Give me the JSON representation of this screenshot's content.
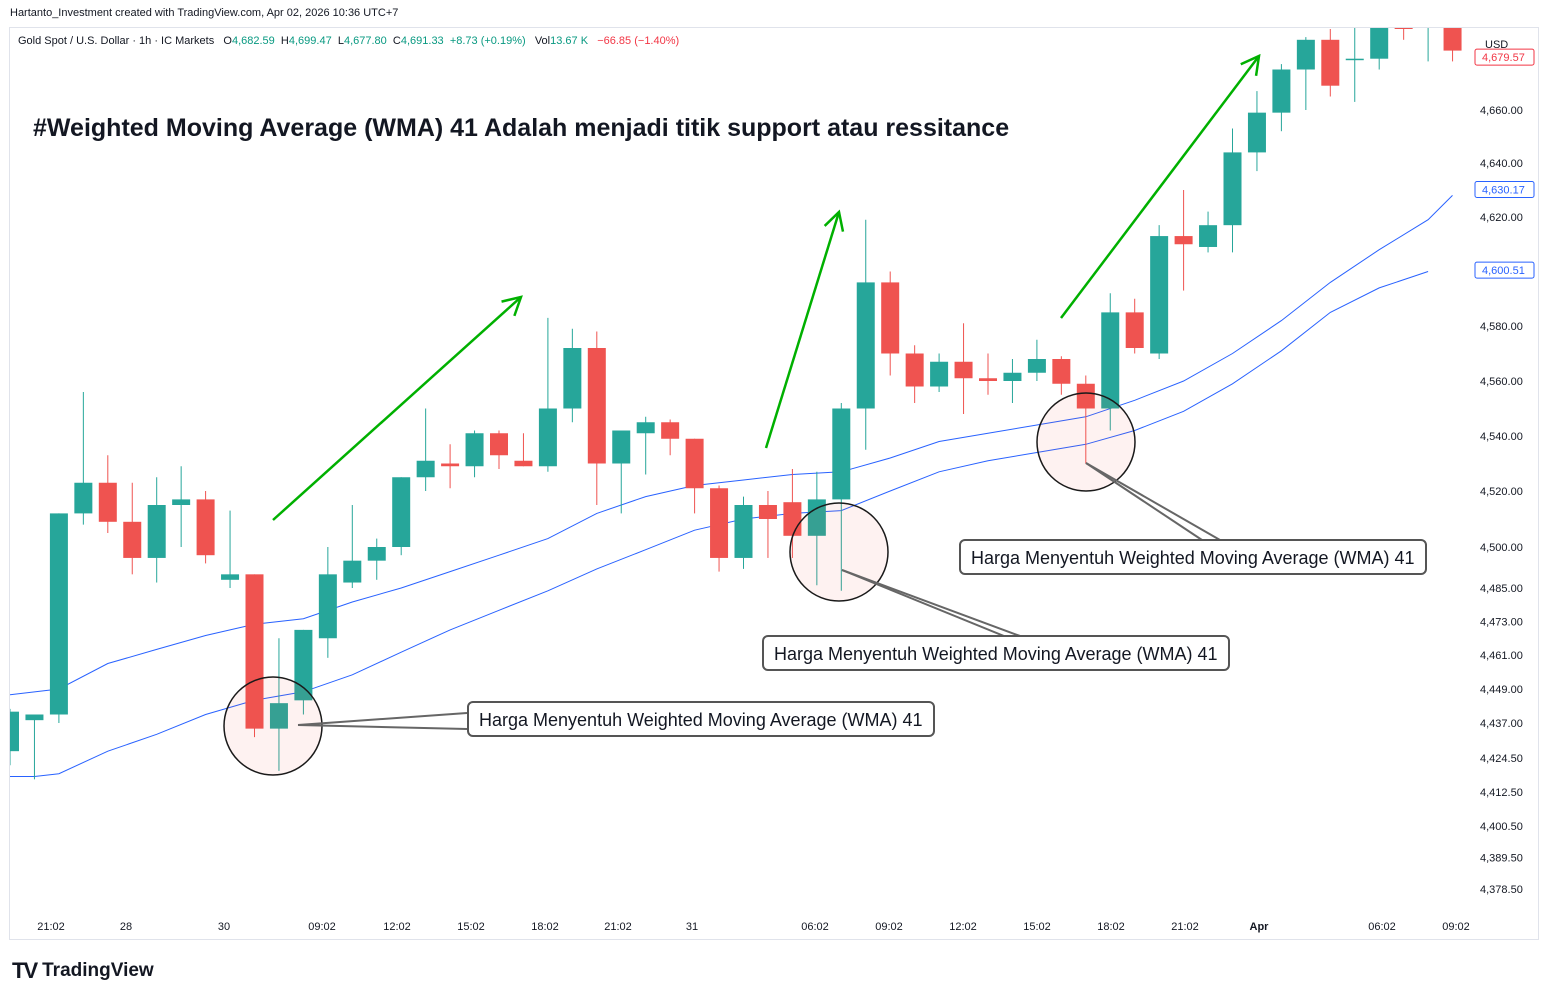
{
  "header": {
    "credit": "Hartanto_Investment created with TradingView.com, Apr 02, 2026 10:36 UTC+7",
    "symbol": "Gold Spot / U.S. Dollar · 1h · IC Markets",
    "o_label": "O",
    "o_value": "4,682.59",
    "h_label": "H",
    "h_value": "4,699.47",
    "l_label": "L",
    "l_value": "4,677.80",
    "c_label": "C",
    "c_value": "4,691.33",
    "change": "+8.73 (+0.19%)",
    "vol_label": "Vol",
    "vol_value": "13.67 K",
    "vol_change": "−66.85 (−1.40%)"
  },
  "currency": "USD",
  "headline": "#Weighted Moving Average (WMA) 41 Adalah menjadi titik support atau ressitance",
  "callouts": [
    "Harga Menyentuh Weighted Moving Average (WMA) 41",
    "Harga Menyentuh Weighted Moving Average (WMA) 41",
    "Harga Menyentuh Weighted Moving Average (WMA) 41"
  ],
  "branding": {
    "logo_mark": "TV",
    "logo_text": "TradingView"
  },
  "colors": {
    "up": "#26a69a",
    "down": "#ef5350",
    "wma": "#2962ff",
    "arrow": "#00b000",
    "price_tag": "#f23645"
  },
  "chart_data": {
    "type": "candlestick",
    "x_tick_labels": [
      "21:02",
      "28",
      "30",
      "09:02",
      "12:02",
      "15:02",
      "18:02",
      "21:02",
      "31",
      "06:02",
      "09:02",
      "12:02",
      "15:02",
      "18:02",
      "21:02",
      "Apr",
      "06:02",
      "09:02"
    ],
    "y_tick_labels": [
      "4,660.00",
      "4,640.00",
      "4,620.00",
      "4,580.00",
      "4,560.00",
      "4,540.00",
      "4,520.00",
      "4,500.00",
      "4,485.00",
      "4,473.00",
      "4,461.00",
      "4,449.00",
      "4,437.00",
      "4,424.50",
      "4,412.50",
      "4,400.50",
      "4,389.50",
      "4,378.50"
    ],
    "y_scale": "log",
    "y_range": [
      4372,
      4700
    ],
    "price_labels": [
      {
        "value": 4679.57,
        "text": "4,679.57",
        "color": "#f23645",
        "filled": false
      },
      {
        "value": 4630.17,
        "text": "4,630.17",
        "color": "#2962ff",
        "filled": false
      },
      {
        "value": 4600.51,
        "text": "4,600.51",
        "color": "#2962ff",
        "filled": false
      }
    ],
    "candles": [
      {
        "o": 4427,
        "h": 4442,
        "l": 4422,
        "c": 4441
      },
      {
        "o": 4438,
        "h": 4440,
        "l": 4417,
        "c": 4440
      },
      {
        "o": 4440,
        "h": 4512,
        "l": 4437,
        "c": 4512
      },
      {
        "o": 4512,
        "h": 4556,
        "l": 4508,
        "c": 4523
      },
      {
        "o": 4523,
        "h": 4533,
        "l": 4505,
        "c": 4509
      },
      {
        "o": 4509,
        "h": 4523,
        "l": 4490,
        "c": 4496
      },
      {
        "o": 4496,
        "h": 4525,
        "l": 4487,
        "c": 4515
      },
      {
        "o": 4515,
        "h": 4529,
        "l": 4500,
        "c": 4517
      },
      {
        "o": 4517,
        "h": 4520,
        "l": 4494,
        "c": 4497
      },
      {
        "o": 4488,
        "h": 4513,
        "l": 4485,
        "c": 4490
      },
      {
        "o": 4490,
        "h": 4490,
        "l": 4432,
        "c": 4435
      },
      {
        "o": 4435,
        "h": 4467,
        "l": 4420,
        "c": 4444
      },
      {
        "o": 4445,
        "h": 4470,
        "l": 4440,
        "c": 4470
      },
      {
        "o": 4467,
        "h": 4500,
        "l": 4460,
        "c": 4490
      },
      {
        "o": 4487,
        "h": 4515,
        "l": 4485,
        "c": 4495
      },
      {
        "o": 4495,
        "h": 4503,
        "l": 4488,
        "c": 4500
      },
      {
        "o": 4500,
        "h": 4525,
        "l": 4497,
        "c": 4525
      },
      {
        "o": 4525,
        "h": 4550,
        "l": 4520,
        "c": 4531
      },
      {
        "o": 4530,
        "h": 4537,
        "l": 4521,
        "c": 4529
      },
      {
        "o": 4529,
        "h": 4542,
        "l": 4525,
        "c": 4541
      },
      {
        "o": 4541,
        "h": 4542,
        "l": 4528,
        "c": 4533
      },
      {
        "o": 4531,
        "h": 4541,
        "l": 4529,
        "c": 4529
      },
      {
        "o": 4529,
        "h": 4583,
        "l": 4527,
        "c": 4550
      },
      {
        "o": 4550,
        "h": 4579,
        "l": 4545,
        "c": 4572
      },
      {
        "o": 4572,
        "h": 4578,
        "l": 4515,
        "c": 4530
      },
      {
        "o": 4530,
        "h": 4542,
        "l": 4512,
        "c": 4542
      },
      {
        "o": 4541,
        "h": 4547,
        "l": 4526,
        "c": 4545
      },
      {
        "o": 4545,
        "h": 4546,
        "l": 4533,
        "c": 4539
      },
      {
        "o": 4539,
        "h": 4539,
        "l": 4512,
        "c": 4521
      },
      {
        "o": 4521,
        "h": 4522,
        "l": 4491,
        "c": 4496
      },
      {
        "o": 4496,
        "h": 4518,
        "l": 4492,
        "c": 4515
      },
      {
        "o": 4515,
        "h": 4520,
        "l": 4496,
        "c": 4510
      },
      {
        "o": 4516,
        "h": 4528,
        "l": 4496,
        "c": 4504
      },
      {
        "o": 4504,
        "h": 4527,
        "l": 4486,
        "c": 4517
      },
      {
        "o": 4517,
        "h": 4552,
        "l": 4484,
        "c": 4550
      },
      {
        "o": 4550,
        "h": 4619,
        "l": 4535,
        "c": 4596
      },
      {
        "o": 4596,
        "h": 4600,
        "l": 4562,
        "c": 4570
      },
      {
        "o": 4570,
        "h": 4573,
        "l": 4552,
        "c": 4558
      },
      {
        "o": 4558,
        "h": 4570,
        "l": 4556,
        "c": 4567
      },
      {
        "o": 4567,
        "h": 4581,
        "l": 4548,
        "c": 4561
      },
      {
        "o": 4561,
        "h": 4570,
        "l": 4555,
        "c": 4560
      },
      {
        "o": 4560,
        "h": 4568,
        "l": 4552,
        "c": 4563
      },
      {
        "o": 4563,
        "h": 4575,
        "l": 4560,
        "c": 4568
      },
      {
        "o": 4568,
        "h": 4569,
        "l": 4555,
        "c": 4559
      },
      {
        "o": 4559,
        "h": 4562,
        "l": 4530,
        "c": 4550
      },
      {
        "o": 4550,
        "h": 4592,
        "l": 4542,
        "c": 4585
      },
      {
        "o": 4585,
        "h": 4590,
        "l": 4570,
        "c": 4572
      },
      {
        "o": 4570,
        "h": 4617,
        "l": 4568,
        "c": 4613
      },
      {
        "o": 4613,
        "h": 4630,
        "l": 4593,
        "c": 4610
      },
      {
        "o": 4609,
        "h": 4622,
        "l": 4607,
        "c": 4617
      },
      {
        "o": 4617,
        "h": 4653,
        "l": 4607,
        "c": 4644
      },
      {
        "o": 4644,
        "h": 4667,
        "l": 4637,
        "c": 4659
      },
      {
        "o": 4659,
        "h": 4677,
        "l": 4652,
        "c": 4675
      },
      {
        "o": 4675,
        "h": 4687,
        "l": 4660,
        "c": 4686
      },
      {
        "o": 4686,
        "h": 4690,
        "l": 4665,
        "c": 4669
      },
      {
        "o": 4679,
        "h": 4694,
        "l": 4663,
        "c": 4679
      },
      {
        "o": 4679,
        "h": 4700,
        "l": 4675,
        "c": 4699
      },
      {
        "o": 4699,
        "h": 4700,
        "l": 4686,
        "c": 4690
      },
      {
        "o": 4691,
        "h": 4699,
        "l": 4678,
        "c": 4694
      },
      {
        "o": 4691,
        "h": 4695,
        "l": 4678,
        "c": 4682
      }
    ],
    "wma_series": [
      {
        "name": "WMA 41",
        "points": [
          [
            0,
            4447
          ],
          [
            2,
            4449
          ],
          [
            4,
            4458
          ],
          [
            6,
            4463
          ],
          [
            8,
            4468
          ],
          [
            10,
            4472
          ],
          [
            12,
            4474
          ],
          [
            14,
            4480
          ],
          [
            16,
            4485
          ],
          [
            18,
            4491
          ],
          [
            20,
            4497
          ],
          [
            22,
            4503
          ],
          [
            24,
            4512
          ],
          [
            26,
            4518
          ],
          [
            28,
            4522
          ],
          [
            30,
            4524
          ],
          [
            32,
            4526
          ],
          [
            34,
            4527
          ],
          [
            36,
            4532
          ],
          [
            38,
            4538
          ],
          [
            40,
            4541
          ],
          [
            42,
            4544
          ],
          [
            44,
            4547
          ],
          [
            46,
            4553
          ],
          [
            48,
            4560
          ],
          [
            50,
            4570
          ],
          [
            52,
            4582
          ],
          [
            54,
            4596
          ],
          [
            56,
            4608
          ],
          [
            58,
            4619
          ],
          [
            59,
            4628
          ]
        ]
      },
      {
        "name": "WMA",
        "points": [
          [
            0,
            4418
          ],
          [
            1,
            4418
          ],
          [
            2,
            4419
          ],
          [
            4,
            4427
          ],
          [
            6,
            4433
          ],
          [
            8,
            4440
          ],
          [
            10,
            4445
          ],
          [
            12,
            4448
          ],
          [
            14,
            4454
          ],
          [
            16,
            4462
          ],
          [
            18,
            4470
          ],
          [
            20,
            4477
          ],
          [
            22,
            4484
          ],
          [
            24,
            4492
          ],
          [
            26,
            4499
          ],
          [
            28,
            4506
          ],
          [
            30,
            4510
          ],
          [
            32,
            4512
          ],
          [
            34,
            4513
          ],
          [
            36,
            4520
          ],
          [
            38,
            4527
          ],
          [
            40,
            4531
          ],
          [
            42,
            4534
          ],
          [
            44,
            4537
          ],
          [
            46,
            4542
          ],
          [
            48,
            4549
          ],
          [
            50,
            4559
          ],
          [
            52,
            4571
          ],
          [
            54,
            4585
          ],
          [
            56,
            4594
          ],
          [
            58,
            4600
          ]
        ]
      }
    ]
  }
}
